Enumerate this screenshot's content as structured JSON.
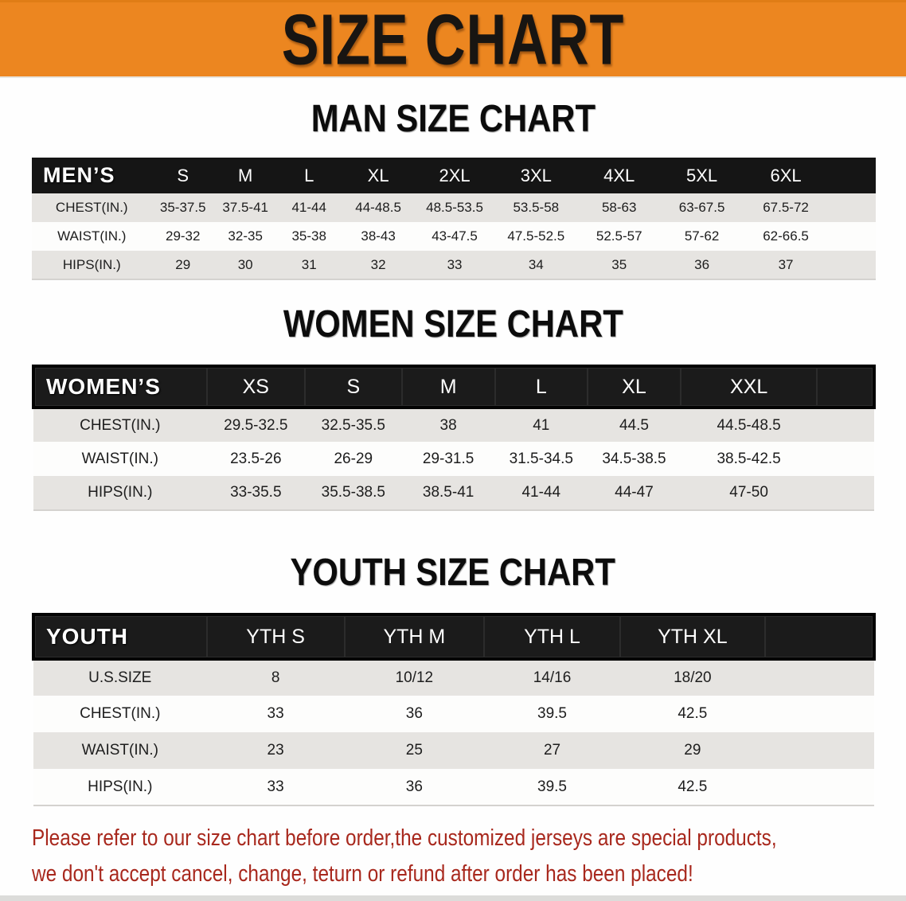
{
  "banner": {
    "title": "SIZE CHART"
  },
  "sections": [
    {
      "kind": "men",
      "title": "MAN SIZE CHART",
      "header_label": "MEN’S",
      "columns": [
        "S",
        "M",
        "L",
        "XL",
        "2XL",
        "3XL",
        "4XL",
        "5XL",
        "6XL"
      ],
      "rows": [
        {
          "label": "CHEST(IN.)",
          "values": [
            "35-37.5",
            "37.5-41",
            "41-44",
            "44-48.5",
            "48.5-53.5",
            "53.5-58",
            "58-63",
            "63-67.5",
            "67.5-72"
          ]
        },
        {
          "label": "WAIST(IN.)",
          "values": [
            "29-32",
            "32-35",
            "35-38",
            "38-43",
            "43-47.5",
            "47.5-52.5",
            "52.5-57",
            "57-62",
            "62-66.5"
          ]
        },
        {
          "label": "HIPS(IN.)",
          "values": [
            "29",
            "30",
            "31",
            "32",
            "33",
            "34",
            "35",
            "36",
            "37"
          ]
        }
      ]
    },
    {
      "kind": "women",
      "title": "WOMEN SIZE CHART",
      "header_label": "WOMEN’S",
      "columns": [
        "XS",
        "S",
        "M",
        "L",
        "XL",
        "XXL"
      ],
      "rows": [
        {
          "label": "CHEST(IN.)",
          "values": [
            "29.5-32.5",
            "32.5-35.5",
            "38",
            "41",
            "44.5",
            "44.5-48.5"
          ]
        },
        {
          "label": "WAIST(IN.)",
          "values": [
            "23.5-26",
            "26-29",
            "29-31.5",
            "31.5-34.5",
            "34.5-38.5",
            "38.5-42.5"
          ]
        },
        {
          "label": "HIPS(IN.)",
          "values": [
            "33-35.5",
            "35.5-38.5",
            "38.5-41",
            "41-44",
            "44-47",
            "47-50"
          ]
        }
      ]
    },
    {
      "kind": "youth",
      "title": "YOUTH SIZE CHART",
      "header_label": "YOUTH",
      "columns": [
        "YTH S",
        "YTH M",
        "YTH L",
        "YTH XL"
      ],
      "rows": [
        {
          "label": "U.S.SIZE",
          "values": [
            "8",
            "10/12",
            "14/16",
            "18/20"
          ]
        },
        {
          "label": "CHEST(IN.)",
          "values": [
            "33",
            "36",
            "39.5",
            "42.5"
          ]
        },
        {
          "label": "WAIST(IN.)",
          "values": [
            "23",
            "25",
            "27",
            "29"
          ]
        },
        {
          "label": "HIPS(IN.)",
          "values": [
            "33",
            "36",
            "39.5",
            "42.5"
          ]
        }
      ]
    }
  ],
  "disclaimer": {
    "line1": "Please refer to our size chart before order,the customized jerseys are special products,",
    "line2": "we don't accept cancel, change, teturn or refund after order has been placed!"
  },
  "colors": {
    "banner_bg": "#ec8620",
    "header_bar": "#151515",
    "row_shade": "#e6e4e1",
    "disclaimer_text": "#a8281d"
  }
}
